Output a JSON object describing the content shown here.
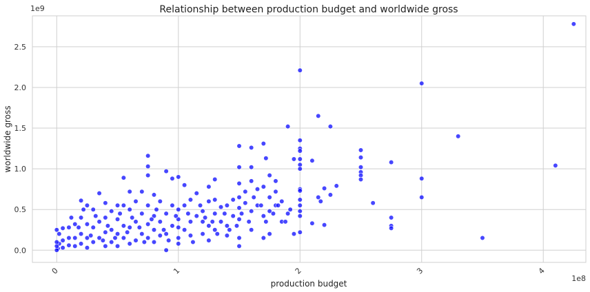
{
  "chart_data": {
    "type": "scatter",
    "title": "Relationship between production budget and worldwide gross",
    "xlabel": "production budget",
    "ylabel": "worldwide gross",
    "x_offset_label": "1e8",
    "y_offset_label": "1e9",
    "xlim": [
      -0.2,
      4.35
    ],
    "ylim": [
      -0.15,
      2.88
    ],
    "x_ticks": [
      0,
      1,
      2,
      3,
      4
    ],
    "x_tick_labels": [
      "0",
      "1",
      "2",
      "3",
      "4"
    ],
    "y_ticks": [
      0,
      0.5,
      1.0,
      1.5,
      2.0,
      2.5
    ],
    "y_tick_labels": [
      "0.0",
      "0.5",
      "1.0",
      "1.5",
      "2.0",
      "2.5"
    ],
    "grid": true,
    "point_color": "#0000ff",
    "series": [
      {
        "points": [
          [
            4.25,
            2.78
          ],
          [
            4.1,
            1.04
          ],
          [
            3.5,
            0.15
          ],
          [
            3.3,
            1.4
          ],
          [
            3.0,
            2.05
          ],
          [
            3.0,
            0.88
          ],
          [
            3.0,
            0.65
          ],
          [
            2.75,
            1.08
          ],
          [
            2.75,
            0.4
          ],
          [
            2.75,
            0.3
          ],
          [
            2.75,
            0.27
          ],
          [
            2.6,
            0.58
          ],
          [
            2.5,
            1.23
          ],
          [
            2.5,
            1.14
          ],
          [
            2.5,
            1.02
          ],
          [
            2.5,
            0.96
          ],
          [
            2.5,
            0.92
          ],
          [
            2.5,
            0.87
          ],
          [
            2.3,
            0.79
          ],
          [
            2.25,
            1.52
          ],
          [
            2.25,
            0.68
          ],
          [
            2.2,
            0.76
          ],
          [
            2.2,
            0.31
          ],
          [
            2.15,
            1.65
          ],
          [
            2.15,
            0.65
          ],
          [
            2.17,
            0.6
          ],
          [
            2.1,
            1.1
          ],
          [
            2.1,
            0.33
          ],
          [
            2.0,
            2.21
          ],
          [
            2.0,
            1.35
          ],
          [
            2.0,
            1.25
          ],
          [
            2.0,
            1.22
          ],
          [
            2.0,
            1.12
          ],
          [
            2.0,
            1.05
          ],
          [
            2.0,
            1.0
          ],
          [
            2.0,
            0.75
          ],
          [
            2.0,
            0.73
          ],
          [
            2.0,
            0.62
          ],
          [
            2.0,
            0.55
          ],
          [
            2.0,
            0.48
          ],
          [
            2.0,
            0.42
          ],
          [
            2.0,
            0.22
          ],
          [
            1.95,
            1.12
          ],
          [
            1.9,
            1.52
          ],
          [
            1.9,
            0.45
          ],
          [
            1.95,
            0.2
          ],
          [
            1.85,
            0.6
          ],
          [
            1.85,
            0.35
          ],
          [
            1.8,
            0.85
          ],
          [
            1.8,
            0.72
          ],
          [
            1.8,
            0.55
          ],
          [
            1.75,
            0.92
          ],
          [
            1.75,
            0.65
          ],
          [
            1.75,
            0.48
          ],
          [
            1.75,
            0.2
          ],
          [
            1.72,
            1.13
          ],
          [
            1.7,
            1.31
          ],
          [
            1.7,
            0.78
          ],
          [
            1.7,
            0.42
          ],
          [
            1.7,
            0.15
          ],
          [
            1.65,
            0.75
          ],
          [
            1.65,
            0.55
          ],
          [
            1.6,
            1.26
          ],
          [
            1.6,
            1.02
          ],
          [
            1.6,
            0.85
          ],
          [
            1.6,
            0.48
          ],
          [
            1.6,
            0.25
          ],
          [
            1.55,
            0.72
          ],
          [
            1.55,
            0.58
          ],
          [
            1.5,
            1.28
          ],
          [
            1.5,
            1.02
          ],
          [
            1.5,
            0.82
          ],
          [
            1.5,
            0.65
          ],
          [
            1.5,
            0.52
          ],
          [
            1.5,
            0.38
          ],
          [
            1.5,
            0.15
          ],
          [
            1.5,
            0.05
          ],
          [
            1.45,
            0.62
          ],
          [
            1.45,
            0.42
          ],
          [
            1.4,
            0.55
          ],
          [
            1.4,
            0.3
          ],
          [
            1.4,
            0.18
          ],
          [
            1.35,
            0.53
          ],
          [
            1.35,
            0.35
          ],
          [
            1.3,
            0.87
          ],
          [
            1.3,
            0.62
          ],
          [
            1.3,
            0.45
          ],
          [
            1.3,
            0.25
          ],
          [
            1.25,
            0.78
          ],
          [
            1.25,
            0.6
          ],
          [
            1.25,
            0.3
          ],
          [
            1.25,
            0.12
          ],
          [
            1.2,
            0.48
          ],
          [
            1.2,
            0.35
          ],
          [
            1.2,
            0.2
          ],
          [
            1.15,
            0.7
          ],
          [
            1.15,
            0.42
          ],
          [
            1.1,
            0.62
          ],
          [
            1.1,
            0.35
          ],
          [
            1.1,
            0.18
          ],
          [
            1.05,
            0.8
          ],
          [
            1.05,
            0.55
          ],
          [
            1.05,
            0.25
          ],
          [
            1.0,
            0.9
          ],
          [
            1.0,
            0.5
          ],
          [
            1.0,
            0.38
          ],
          [
            1.0,
            0.28
          ],
          [
            1.0,
            0.15
          ],
          [
            1.0,
            0.08
          ],
          [
            0.95,
            0.88
          ],
          [
            0.95,
            0.55
          ],
          [
            0.95,
            0.3
          ],
          [
            0.9,
            0.97
          ],
          [
            0.9,
            0.45
          ],
          [
            0.9,
            0.2
          ],
          [
            0.9,
            0.0
          ],
          [
            0.85,
            0.6
          ],
          [
            0.85,
            0.35
          ],
          [
            0.85,
            0.18
          ],
          [
            0.8,
            0.68
          ],
          [
            0.8,
            0.42
          ],
          [
            0.8,
            0.25
          ],
          [
            0.8,
            0.1
          ],
          [
            0.75,
            1.16
          ],
          [
            0.75,
            1.03
          ],
          [
            0.75,
            0.92
          ],
          [
            0.75,
            0.55
          ],
          [
            0.75,
            0.32
          ],
          [
            0.75,
            0.15
          ],
          [
            0.7,
            0.72
          ],
          [
            0.7,
            0.45
          ],
          [
            0.7,
            0.2
          ],
          [
            0.65,
            0.6
          ],
          [
            0.65,
            0.35
          ],
          [
            0.65,
            0.12
          ],
          [
            0.6,
            0.72
          ],
          [
            0.6,
            0.5
          ],
          [
            0.6,
            0.28
          ],
          [
            0.6,
            0.08
          ],
          [
            0.55,
            0.89
          ],
          [
            0.55,
            0.55
          ],
          [
            0.55,
            0.3
          ],
          [
            0.55,
            0.15
          ],
          [
            0.5,
            0.55
          ],
          [
            0.5,
            0.38
          ],
          [
            0.5,
            0.2
          ],
          [
            0.5,
            0.05
          ],
          [
            0.45,
            0.48
          ],
          [
            0.45,
            0.25
          ],
          [
            0.45,
            0.1
          ],
          [
            0.4,
            0.58
          ],
          [
            0.4,
            0.4
          ],
          [
            0.4,
            0.22
          ],
          [
            0.4,
            0.05
          ],
          [
            0.35,
            0.7
          ],
          [
            0.35,
            0.35
          ],
          [
            0.35,
            0.15
          ],
          [
            0.3,
            0.5
          ],
          [
            0.3,
            0.28
          ],
          [
            0.3,
            0.1
          ],
          [
            0.25,
            0.55
          ],
          [
            0.25,
            0.32
          ],
          [
            0.25,
            0.15
          ],
          [
            0.25,
            0.03
          ],
          [
            0.2,
            0.61
          ],
          [
            0.2,
            0.4
          ],
          [
            0.2,
            0.2
          ],
          [
            0.2,
            0.08
          ],
          [
            0.15,
            0.32
          ],
          [
            0.15,
            0.15
          ],
          [
            0.15,
            0.05
          ],
          [
            0.1,
            0.28
          ],
          [
            0.1,
            0.15
          ],
          [
            0.1,
            0.06
          ],
          [
            0.05,
            0.27
          ],
          [
            0.05,
            0.12
          ],
          [
            0.05,
            0.03
          ],
          [
            0.02,
            0.2
          ],
          [
            0.02,
            0.08
          ],
          [
            0.01,
            0.02
          ],
          [
            0.0,
            0.0
          ],
          [
            0.0,
            0.05
          ],
          [
            0.0,
            0.1
          ],
          [
            0.0,
            0.25
          ],
          [
            0.12,
            0.4
          ],
          [
            0.18,
            0.28
          ],
          [
            0.22,
            0.5
          ],
          [
            0.28,
            0.18
          ],
          [
            0.32,
            0.42
          ],
          [
            0.38,
            0.12
          ],
          [
            0.42,
            0.3
          ],
          [
            0.48,
            0.15
          ],
          [
            0.52,
            0.45
          ],
          [
            0.58,
            0.22
          ],
          [
            0.62,
            0.4
          ],
          [
            0.68,
            0.28
          ],
          [
            0.72,
            0.1
          ],
          [
            0.78,
            0.38
          ],
          [
            0.82,
            0.5
          ],
          [
            0.88,
            0.25
          ],
          [
            0.92,
            0.12
          ],
          [
            0.98,
            0.42
          ],
          [
            1.08,
            0.45
          ],
          [
            1.12,
            0.1
          ],
          [
            1.18,
            0.55
          ],
          [
            1.22,
            0.4
          ],
          [
            1.28,
            0.35
          ],
          [
            1.32,
            0.2
          ],
          [
            1.38,
            0.45
          ],
          [
            1.42,
            0.25
          ],
          [
            1.48,
            0.3
          ],
          [
            1.52,
            0.45
          ],
          [
            1.58,
            0.35
          ],
          [
            1.62,
            0.65
          ],
          [
            1.68,
            0.55
          ],
          [
            1.72,
            0.35
          ],
          [
            1.78,
            0.45
          ],
          [
            1.82,
            0.55
          ],
          [
            1.88,
            0.35
          ],
          [
            1.92,
            0.5
          ]
        ]
      }
    ]
  }
}
